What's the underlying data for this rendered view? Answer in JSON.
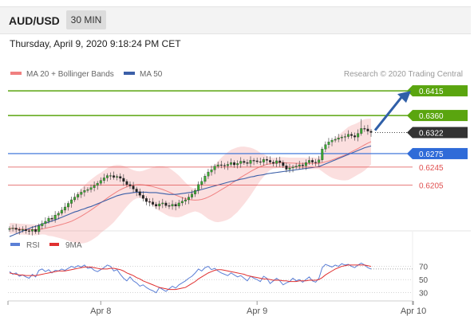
{
  "header": {
    "pair": "AUD/USD",
    "timeframe": "30 MIN",
    "datetime": "Thursday, April 9, 2020 9:18:24 PM CET"
  },
  "colors": {
    "bollinger": "#f08080",
    "ma50": "#3b5fa8",
    "resistance": "#5aa50f",
    "pivot": "#2f6bd8",
    "support": "#e05050",
    "rsi": "#5b7fd6",
    "rsi_ma": "#e03030",
    "arrow": "#2f5fa8",
    "current": "#333333"
  },
  "chart_data": [
    {
      "type": "candlestick",
      "legend": [
        {
          "name": "MA 20 + Bollinger Bands",
          "color": "#f08080"
        },
        {
          "name": "MA 50",
          "color": "#3b5fa8"
        }
      ],
      "credit": "Research © 2020 Trading Central",
      "ylim": [
        0.6085,
        0.644
      ],
      "x_labels": [
        {
          "label": "Apr 8",
          "index": 28
        },
        {
          "label": "Apr 9",
          "index": 76
        },
        {
          "label": "Apr 10",
          "index": 124
        }
      ],
      "levels": [
        {
          "value": 0.6415,
          "label": "0.6415",
          "kind": "resistance"
        },
        {
          "value": 0.636,
          "label": "0.6360",
          "kind": "resistance"
        },
        {
          "value": 0.6322,
          "label": "0.6322",
          "kind": "current"
        },
        {
          "value": 0.6275,
          "label": "0.6275",
          "kind": "pivot"
        },
        {
          "value": 0.6245,
          "label": "0.6245",
          "kind": "support"
        },
        {
          "value": 0.6205,
          "label": "0.6205",
          "kind": "support"
        }
      ],
      "close": [
        0.6108,
        0.6109,
        0.6106,
        0.6104,
        0.6106,
        0.6103,
        0.6102,
        0.6106,
        0.6101,
        0.6114,
        0.6119,
        0.6124,
        0.6131,
        0.6129,
        0.6138,
        0.6142,
        0.6149,
        0.6156,
        0.6164,
        0.6172,
        0.6178,
        0.6184,
        0.6189,
        0.6193,
        0.6195,
        0.6199,
        0.6204,
        0.6209,
        0.6215,
        0.6221,
        0.6226,
        0.6226,
        0.6222,
        0.6224,
        0.622,
        0.6213,
        0.6206,
        0.6203,
        0.6196,
        0.619,
        0.6182,
        0.6175,
        0.6168,
        0.6167,
        0.6162,
        0.6158,
        0.6163,
        0.6165,
        0.6159,
        0.6158,
        0.6162,
        0.6158,
        0.6165,
        0.6169,
        0.6172,
        0.6178,
        0.6185,
        0.6193,
        0.6206,
        0.6213,
        0.6225,
        0.6234,
        0.6239,
        0.6247,
        0.625,
        0.6249,
        0.6248,
        0.6251,
        0.6255,
        0.625,
        0.6253,
        0.6258,
        0.6255,
        0.6253,
        0.626,
        0.6259,
        0.6257,
        0.6256,
        0.6262,
        0.626,
        0.6256,
        0.6253,
        0.6259,
        0.6255,
        0.6248,
        0.624,
        0.6243,
        0.6245,
        0.6247,
        0.625,
        0.6248,
        0.6255,
        0.626,
        0.6256,
        0.6255,
        0.6261,
        0.6285,
        0.6295,
        0.6301,
        0.6305,
        0.6307,
        0.631,
        0.6312,
        0.6313,
        0.6318,
        0.6315,
        0.6312,
        0.632,
        0.6331,
        0.633,
        0.6325,
        0.6322
      ],
      "ma50": [
        0.609,
        0.6093,
        0.6096,
        0.6099,
        0.6102,
        0.6105,
        0.6108,
        0.6111,
        0.6113,
        0.6115,
        0.6118,
        0.612,
        0.6122,
        0.6125,
        0.6127,
        0.613,
        0.6133,
        0.6136,
        0.6139,
        0.6142,
        0.6145,
        0.6147,
        0.615,
        0.6152,
        0.6155,
        0.6157,
        0.616,
        0.6163,
        0.6166,
        0.6169,
        0.6172,
        0.6175,
        0.6178,
        0.6181,
        0.6183,
        0.6185,
        0.6186,
        0.6187,
        0.6188,
        0.6189,
        0.6189,
        0.6189,
        0.6189,
        0.6188,
        0.6188,
        0.6188,
        0.6187,
        0.6186,
        0.6185,
        0.6184,
        0.6184,
        0.6184,
        0.6185,
        0.6186,
        0.6187,
        0.6188,
        0.6189,
        0.6191,
        0.6193,
        0.6195,
        0.6197,
        0.6199,
        0.6201,
        0.6203,
        0.6205,
        0.6207,
        0.6209,
        0.6211,
        0.6213,
        0.6214,
        0.6216,
        0.6218,
        0.6219,
        0.6221,
        0.6223,
        0.6224,
        0.6226,
        0.6227,
        0.6228,
        0.623,
        0.6231,
        0.6232,
        0.6233,
        0.6234,
        0.6235,
        0.6236,
        0.6237,
        0.6238,
        0.6239,
        0.624,
        0.6241,
        0.6242,
        0.6243,
        0.6244,
        0.6245,
        0.6246,
        0.6249,
        0.6252,
        0.6255,
        0.6258,
        0.6261,
        0.6264,
        0.6267,
        0.627,
        0.6273,
        0.6276,
        0.6279,
        0.6282,
        0.6285,
        0.6288,
        0.629,
        0.6292
      ]
    },
    {
      "type": "line",
      "legend": [
        {
          "name": "RSI",
          "color": "#5b7fd6"
        },
        {
          "name": "9MA",
          "color": "#e03030"
        }
      ],
      "ylim": [
        20,
        90
      ],
      "yticks": [
        30,
        50,
        70
      ],
      "rsi": [
        62,
        58,
        60,
        55,
        57,
        54,
        52,
        58,
        54,
        64,
        66,
        62,
        65,
        60,
        64,
        63,
        66,
        64,
        67,
        70,
        68,
        71,
        69,
        72,
        67,
        68,
        64,
        62,
        65,
        68,
        72,
        70,
        63,
        65,
        58,
        52,
        48,
        54,
        48,
        45,
        40,
        42,
        38,
        35,
        33,
        30,
        38,
        35,
        32,
        36,
        40,
        37,
        42,
        45,
        48,
        52,
        55,
        60,
        66,
        63,
        68,
        70,
        65,
        67,
        63,
        60,
        58,
        56,
        60,
        57,
        54,
        56,
        52,
        48,
        55,
        52,
        50,
        47,
        55,
        52,
        44,
        48,
        52,
        48,
        42,
        45,
        47,
        52,
        48,
        50,
        46,
        50,
        54,
        48,
        46,
        52,
        68,
        73,
        71,
        69,
        72,
        70,
        74,
        72,
        73,
        70,
        68,
        72,
        75,
        72,
        68,
        66
      ],
      "ma9": [
        60,
        59,
        58,
        57,
        57,
        56,
        56,
        56,
        56,
        57,
        58,
        59,
        60,
        61,
        62,
        63,
        63,
        63,
        64,
        65,
        66,
        67,
        68,
        69,
        69,
        69,
        68,
        67,
        66,
        66,
        66,
        67,
        67,
        66,
        65,
        63,
        60,
        58,
        56,
        53,
        51,
        48,
        46,
        44,
        42,
        40,
        38,
        37,
        36,
        35,
        35,
        35,
        36,
        37,
        38,
        41,
        44,
        47,
        51,
        54,
        57,
        60,
        62,
        64,
        65,
        65,
        64,
        63,
        62,
        61,
        60,
        59,
        58,
        56,
        55,
        54,
        53,
        52,
        51,
        51,
        50,
        49,
        49,
        49,
        48,
        48,
        47,
        47,
        47,
        48,
        48,
        48,
        49,
        49,
        49,
        50,
        53,
        57,
        60,
        63,
        66,
        68,
        70,
        71,
        72,
        72,
        72,
        72,
        72,
        72,
        71,
        70
      ]
    }
  ]
}
